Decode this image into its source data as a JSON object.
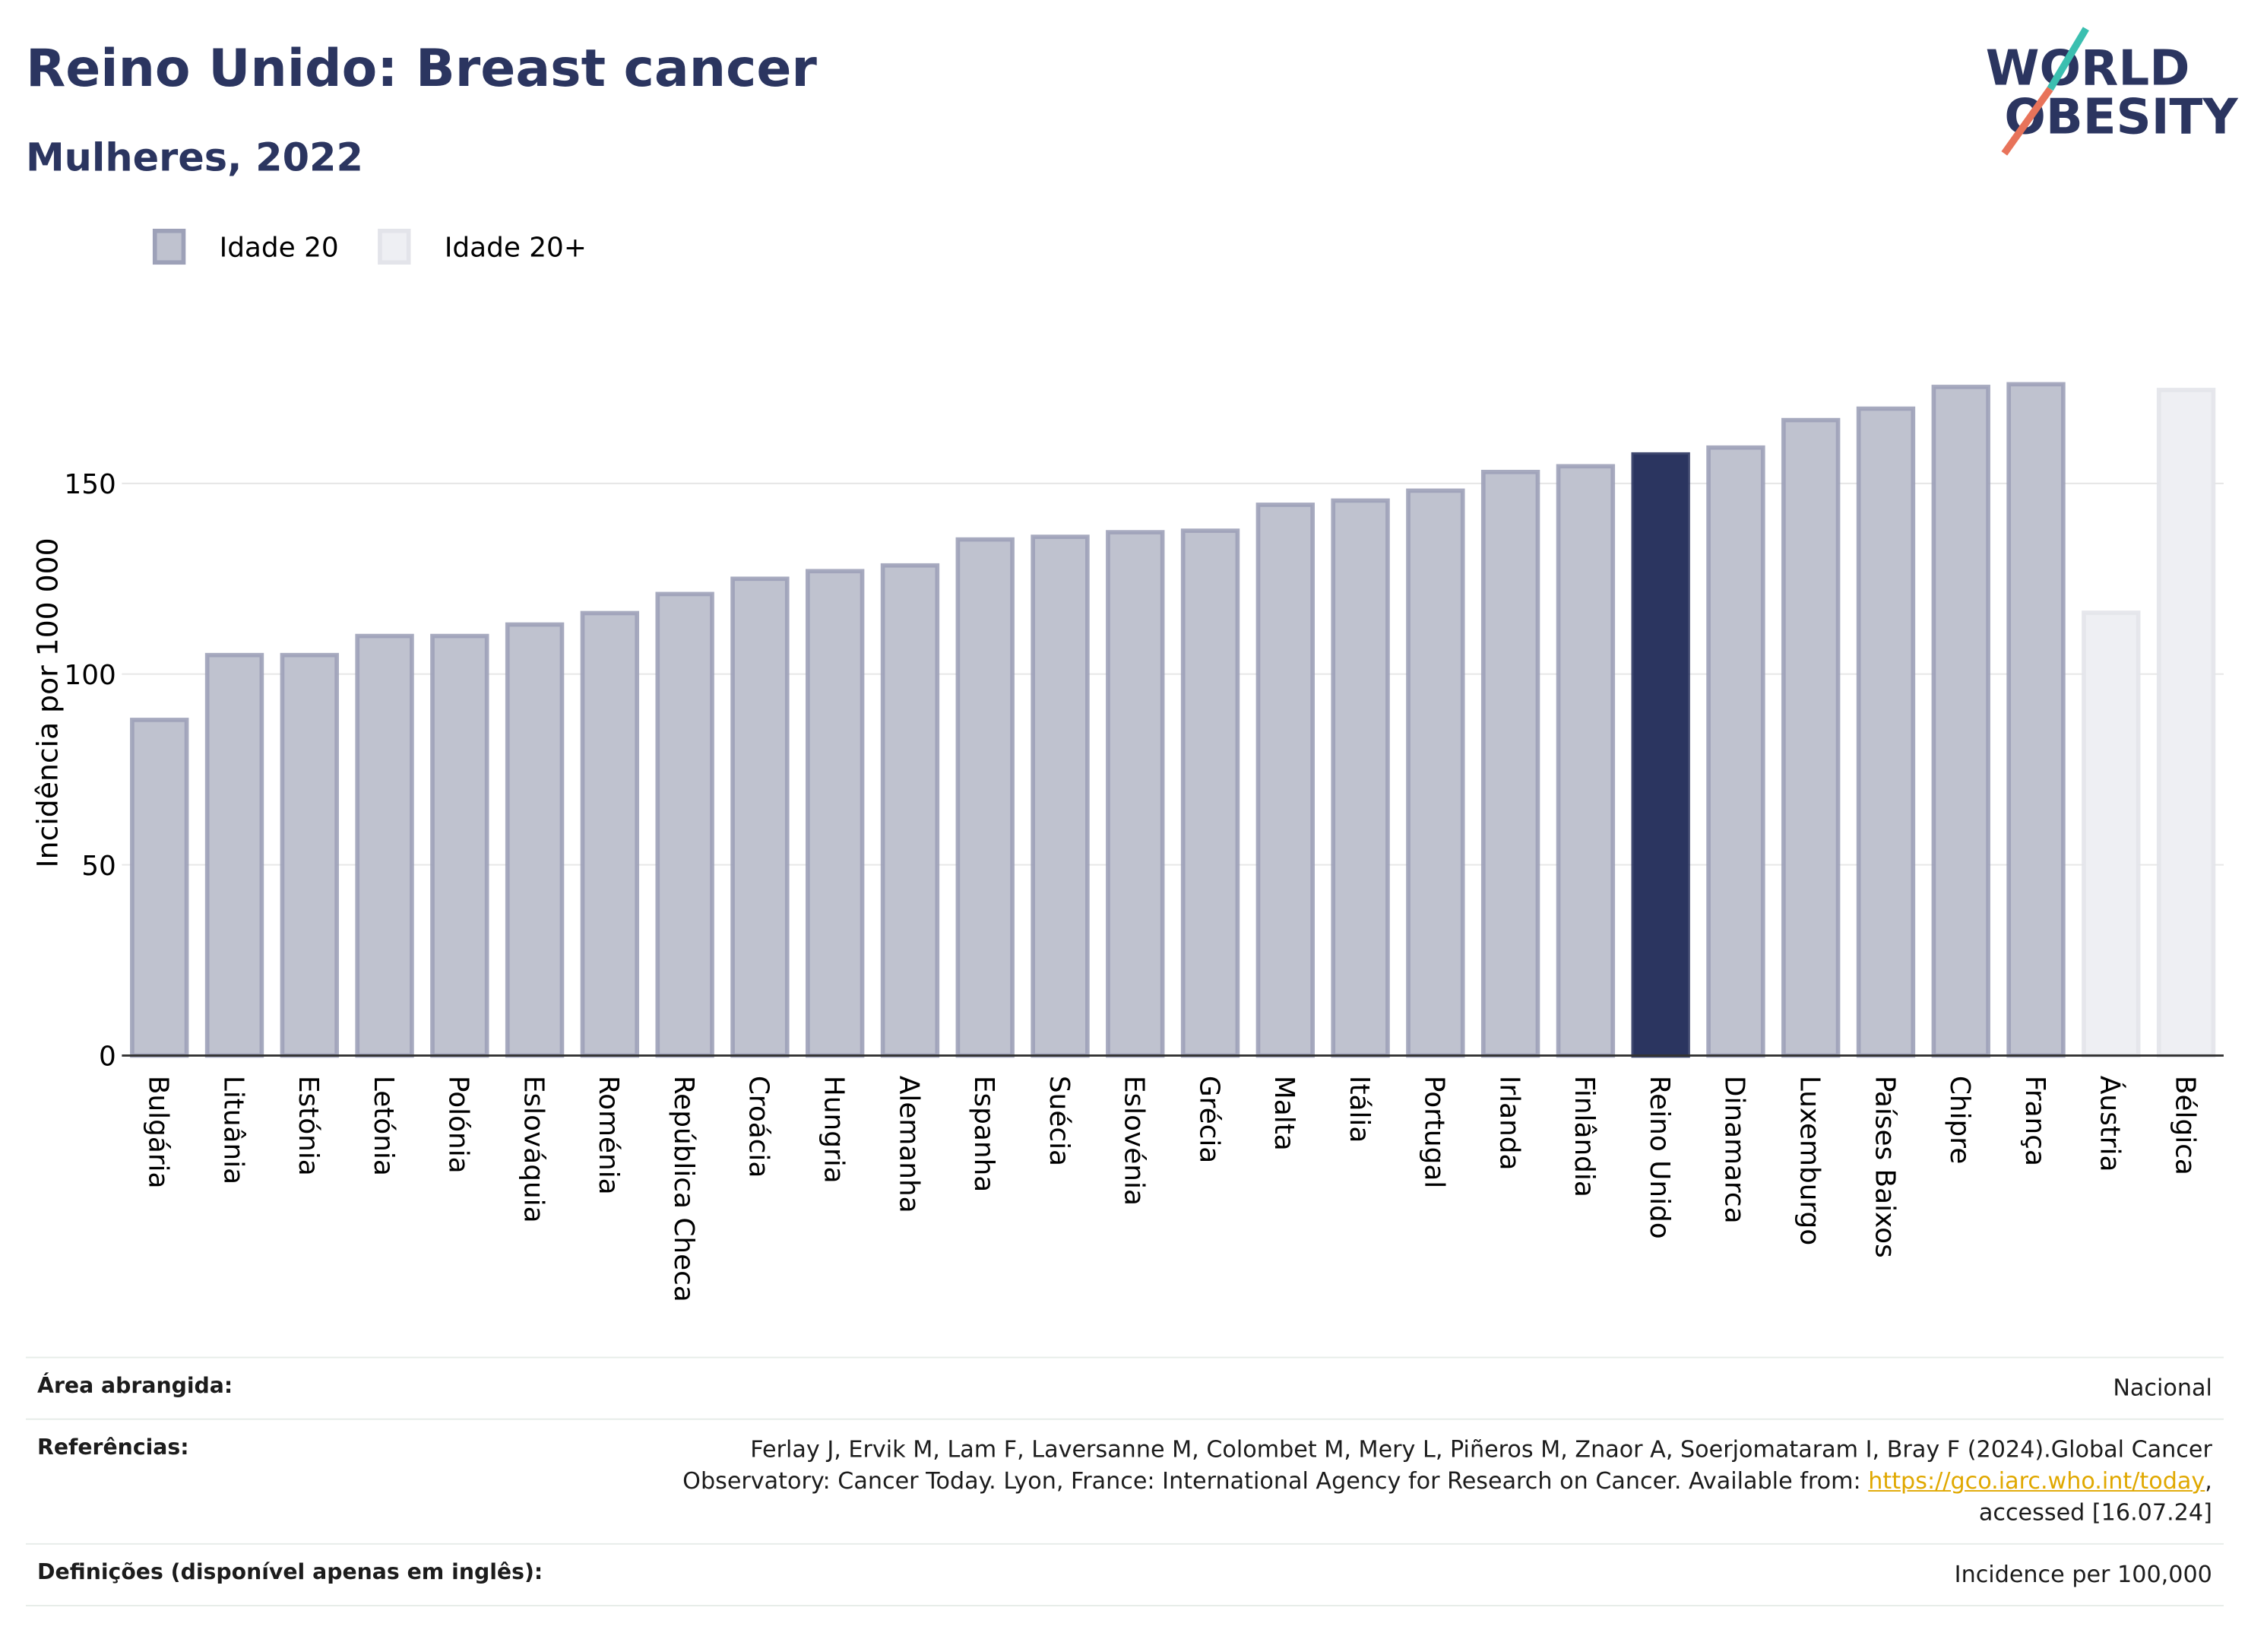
{
  "chart_data": {
    "type": "bar",
    "title": "Reino Unido: Breast cancer",
    "subtitle": "Mulheres, 2022",
    "y_label": "Incidência por 100 000",
    "logo": [
      "WORLD",
      "OBESITY"
    ],
    "categories": [
      "Bulgária",
      "Lituânia",
      "Estónia",
      "Letónia",
      "Polónia",
      "Eslováquia",
      "Roménia",
      "República Checa",
      "Croácia",
      "Hungria",
      "Alemanha",
      "Espanha",
      "Suécia",
      "Eslovénia",
      "Grécia",
      "Malta",
      "Itália",
      "Portugal",
      "Irlanda",
      "Finlândia",
      "Reino Unido",
      "Dinamarca",
      "Luxemburgo",
      "Países Baixos",
      "Chipre",
      "França",
      "Áustria",
      "Bélgica"
    ],
    "series": [
      {
        "name": "Idade 20",
        "color": "#bfc2cf",
        "stroke": "#9da1b8",
        "values": [
          88,
          105,
          105,
          110,
          110,
          113,
          116,
          121,
          125,
          127,
          128.5,
          135.3,
          136,
          137.2,
          137.6,
          144.4,
          145.5,
          148.1,
          153,
          154.5,
          157.6,
          159.4,
          166.6,
          169.6,
          175.3,
          176,
          null,
          null
        ]
      },
      {
        "name": "Idade 20+",
        "color": "#eeeff3",
        "stroke": "#e3e4ea",
        "values": [
          null,
          null,
          null,
          null,
          null,
          null,
          null,
          null,
          null,
          null,
          null,
          null,
          null,
          null,
          null,
          null,
          null,
          null,
          null,
          null,
          null,
          null,
          null,
          null,
          null,
          null,
          116.1,
          174.5
        ]
      }
    ],
    "highlight": {
      "category": "Reino Unido",
      "color": "#2b3560"
    },
    "ylim": [
      0,
      188
    ],
    "yticks": [
      0,
      50,
      100,
      150
    ],
    "grid": true
  },
  "footer": {
    "rows": [
      {
        "label": "Área abrangida:",
        "value": "Nacional"
      },
      {
        "label": "Referências:",
        "value": "Ferlay J, Ervik M, Lam F, Laversanne M, Colombet M, Mery L, Piñeros M, Znaor A, Soerjomataram I, Bray F (2024).Global Cancer Observatory: Cancer Today. Lyon, France: International Agency for Research on Cancer. Available from: ",
        "link": "https://gco.iarc.who.int/today",
        "after": ", accessed [16.07.24]"
      },
      {
        "label": "Definições (disponível apenas em inglês):",
        "value": "Incidence per 100,000"
      }
    ]
  }
}
